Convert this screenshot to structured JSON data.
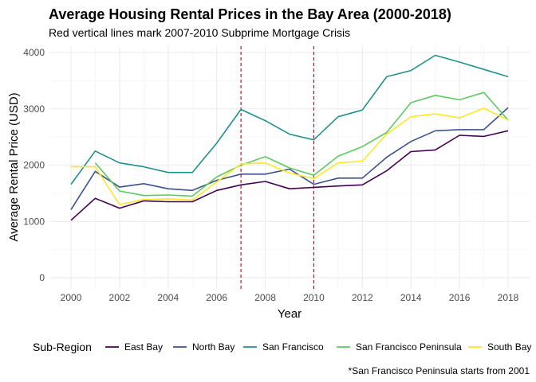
{
  "chart_data": {
    "type": "line",
    "title": "Average Housing Rental Prices in the Bay Area (2000-2018)",
    "subtitle": "Red vertical lines mark 2007-2010 Subprime Mortgage Crisis",
    "xlabel": "Year",
    "ylabel": "Average Rental Price (USD)",
    "caption": "*San Francisco Peninsula starts from 2001",
    "xlim": [
      2000,
      2018
    ],
    "ylim": [
      0,
      4000
    ],
    "x_ticks": [
      "2000",
      "2002",
      "2004",
      "2006",
      "2008",
      "2010",
      "2012",
      "2014",
      "2016",
      "2018"
    ],
    "y_ticks": [
      "0",
      "1000",
      "2000",
      "3000",
      "4000"
    ],
    "grid": true,
    "vlines": [
      {
        "x": 2007,
        "color": "#cc0000"
      },
      {
        "x": 2010,
        "color": "#cc0000"
      }
    ],
    "legend": {
      "title": "Sub-Region",
      "position": "bottom"
    },
    "x": [
      2000,
      2001,
      2002,
      2003,
      2004,
      2005,
      2006,
      2007,
      2008,
      2009,
      2010,
      2011,
      2012,
      2013,
      2014,
      2015,
      2016,
      2017,
      2018
    ],
    "series": [
      {
        "name": "East Bay",
        "color": "#440154",
        "values": [
          1020,
          1410,
          1235,
          1365,
          1350,
          1350,
          1550,
          1650,
          1710,
          1580,
          1605,
          1630,
          1650,
          1900,
          2240,
          2270,
          2530,
          2510,
          2610
        ]
      },
      {
        "name": "North Bay",
        "color": "#3b528b",
        "values": [
          1210,
          1890,
          1610,
          1670,
          1580,
          1550,
          1730,
          1840,
          1840,
          1930,
          1660,
          1770,
          1770,
          2140,
          2420,
          2610,
          2630,
          2630,
          3020
        ]
      },
      {
        "name": "San Francisco",
        "color": "#21908c",
        "values": [
          1660,
          2250,
          2040,
          1970,
          1870,
          1870,
          2390,
          2990,
          2790,
          2550,
          2450,
          2860,
          2980,
          3570,
          3680,
          3950,
          3830,
          3700,
          3570
        ]
      },
      {
        "name": "San Francisco Peninsula",
        "color": "#5ec962",
        "values": [
          null,
          2040,
          1540,
          1460,
          1470,
          1450,
          1790,
          2000,
          2150,
          1950,
          1820,
          2160,
          2330,
          2580,
          3110,
          3240,
          3160,
          3290,
          2800
        ]
      },
      {
        "name": "South Bay",
        "color": "#fde725",
        "values": [
          1970,
          1970,
          1300,
          1390,
          1400,
          1380,
          1700,
          2020,
          2040,
          1860,
          1760,
          2040,
          2070,
          2550,
          2860,
          2910,
          2840,
          3010,
          2800
        ]
      }
    ]
  }
}
